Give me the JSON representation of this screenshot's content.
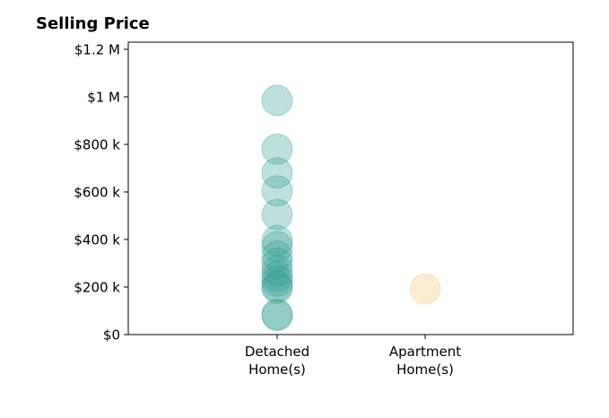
{
  "chart_data": {
    "type": "scatter",
    "title": "Selling Price",
    "xlabel": "",
    "ylabel": "",
    "categories": [
      "Detached\nHome(s)",
      "Apartment\nHome(s)"
    ],
    "ylim": [
      0,
      1230000
    ],
    "yticks": [
      {
        "value": 0,
        "label": "$0"
      },
      {
        "value": 200000,
        "label": "$200 k"
      },
      {
        "value": 400000,
        "label": "$400 k"
      },
      {
        "value": 600000,
        "label": "$600 k"
      },
      {
        "value": 800000,
        "label": "$800 k"
      },
      {
        "value": 1000000,
        "label": "$1 M"
      },
      {
        "value": 1200000,
        "label": "$1.2 M"
      }
    ],
    "grid": false,
    "series": [
      {
        "category": "Detached\nHome(s)",
        "color": "#2a9d8f",
        "values": [
          985000,
          780000,
          680000,
          605000,
          505000,
          395000,
          370000,
          330000,
          300000,
          270000,
          245000,
          225000,
          205000,
          195000,
          85000,
          80000
        ]
      },
      {
        "category": "Apartment\nHome(s)",
        "color": "#f4d9a0",
        "values": [
          192000
        ]
      }
    ]
  }
}
